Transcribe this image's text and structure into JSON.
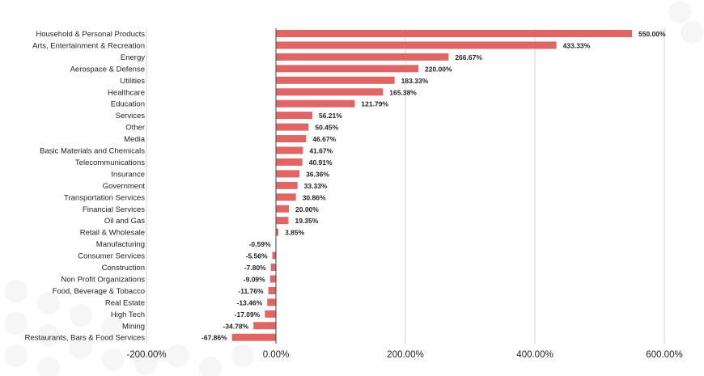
{
  "chart_data": {
    "type": "bar",
    "orientation": "horizontal",
    "title": "",
    "xlabel": "",
    "ylabel": "",
    "xlim": [
      -200,
      600
    ],
    "ticks": [
      -200,
      0,
      200,
      400,
      600
    ],
    "tick_labels": [
      "-200.00%",
      "0.00%",
      "200.00%",
      "400.00%",
      "600.00%"
    ],
    "grid": true,
    "bar_color": "#e06666",
    "categories": [
      "Household & Personal Products",
      "Arts, Entertainment & Recreation",
      "Energy",
      "Aerospace & Defense",
      "Utilities",
      "Healthcare",
      "Education",
      "Services",
      "Other",
      "Media",
      "Basic Materials and Chemicals",
      "Telecommunications",
      "Insurance",
      "Government",
      "Transportation Services",
      "Financial Services",
      "Oil and Gas",
      "Retail & Wholesale",
      "Manufacturing",
      "Consumer Services",
      "Construction",
      "Non Profit Organizations",
      "Food, Beverage & Tobacco",
      "Real Estate",
      "High Tech",
      "Mining",
      "Restaurants, Bars & Food Services"
    ],
    "values": [
      550.0,
      433.33,
      266.67,
      220.0,
      183.33,
      165.38,
      121.79,
      56.21,
      50.45,
      46.67,
      41.67,
      40.91,
      36.36,
      33.33,
      30.86,
      20.0,
      19.35,
      3.85,
      -0.59,
      -5.56,
      -7.8,
      -9.09,
      -11.76,
      -13.46,
      -17.09,
      -34.78,
      -67.86
    ],
    "value_labels": [
      "550.00%",
      "433.33%",
      "266.67%",
      "220.00%",
      "183.33%",
      "165.38%",
      "121.79%",
      "56.21%",
      "50.45%",
      "46.67%",
      "41.67%",
      "40.91%",
      "36.36%",
      "33.33%",
      "30.86%",
      "20.00%",
      "19.35%",
      "3.85%",
      "-0.59%",
      "-5.56%",
      "-7.80%",
      "-9.09%",
      "-11.76%",
      "-13.46%",
      "-17.09%",
      "-34.78%",
      "-67.86%"
    ]
  }
}
